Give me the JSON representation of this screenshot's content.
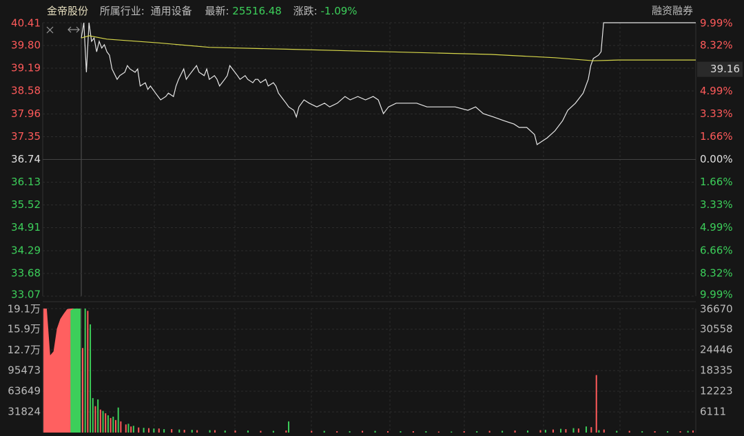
{
  "header": {
    "name": "金帝股份",
    "industry_label": "所属行业:",
    "industry": "通用设备",
    "latest_label": "最新:",
    "latest": "25516.48",
    "change_label": "涨跌:",
    "change": "-1.09%",
    "right_link": "融资融券"
  },
  "chart_data": [
    {
      "type": "line",
      "xlim": [
        0,
        240
      ],
      "ylim": [
        33.07,
        40.41
      ],
      "yticks": [
        40.41,
        {
          "value": 39.8,
          "label": "39.80"
        },
        39.19,
        38.58,
        37.96,
        37.35,
        36.74,
        36.13,
        35.52,
        34.91,
        34.29,
        33.68,
        33.07
      ],
      "y2lim": [
        -9.99,
        9.99
      ],
      "y2ticks": [
        {
          "value": 9.99,
          "label": "9.99%"
        },
        {
          "value": 8.32,
          "label": "8.32%"
        },
        {
          "value": 6.66,
          "label": "6.66%"
        },
        {
          "value": 4.99,
          "label": "4.99%"
        },
        {
          "value": 3.33,
          "label": "3.33%"
        },
        {
          "value": 1.66,
          "label": "1.66%"
        },
        {
          "value": 0,
          "label": "0.00%"
        },
        {
          "value": -1.66,
          "label": "1.66%"
        },
        {
          "value": -3.33,
          "label": "3.33%"
        },
        {
          "value": -4.99,
          "label": "4.99%"
        },
        {
          "value": -6.66,
          "label": "6.66%"
        },
        {
          "value": -8.32,
          "label": "8.32%"
        },
        {
          "value": -9.99,
          "label": "9.99%"
        }
      ],
      "up_color": "#ff5a5a",
      "down_color": "#3ccf5a",
      "flat_color": "#e0e0e0",
      "grid": true,
      "price_label": 39.16,
      "series": [
        {
          "color": "#e8e8e8",
          "x": [
            0,
            1,
            2,
            3,
            4,
            5,
            6,
            7,
            8,
            9,
            10,
            11,
            12,
            14,
            15,
            17,
            18,
            19,
            21,
            22,
            23,
            25,
            26,
            27,
            29,
            30,
            31,
            33,
            34,
            36,
            37,
            38,
            40,
            41,
            42,
            44,
            45,
            46,
            48,
            49,
            50,
            52,
            53,
            54,
            56,
            57,
            58,
            60,
            61,
            62,
            64,
            65,
            67,
            68,
            69,
            70,
            72,
            73,
            75,
            76,
            77,
            79,
            80,
            81,
            83,
            84,
            85,
            87,
            89,
            92,
            95,
            97,
            100,
            103,
            105,
            108,
            111,
            114,
            116,
            118,
            120,
            123,
            127,
            131,
            135,
            140,
            146,
            151,
            154,
            157,
            161,
            165,
            169,
            171,
            174,
            177,
            178,
            180,
            182,
            185,
            188,
            190,
            193,
            196,
            198,
            199,
            200,
            202,
            203,
            204,
            240
          ],
          "values": [
            40.0,
            40.41,
            39.08,
            40.41,
            39.91,
            40.0,
            39.63,
            39.91,
            39.73,
            39.82,
            39.63,
            39.54,
            39.17,
            38.89,
            38.99,
            39.08,
            39.26,
            39.17,
            39.08,
            39.17,
            38.71,
            38.8,
            38.62,
            38.71,
            38.52,
            38.43,
            38.34,
            38.43,
            38.52,
            38.43,
            38.71,
            38.89,
            39.17,
            38.89,
            38.99,
            39.17,
            39.26,
            39.08,
            38.99,
            39.17,
            38.89,
            38.99,
            38.89,
            38.71,
            38.89,
            38.99,
            39.26,
            39.08,
            38.99,
            38.89,
            38.99,
            38.89,
            38.8,
            38.89,
            38.89,
            38.8,
            38.89,
            38.71,
            38.8,
            38.71,
            38.52,
            38.34,
            38.25,
            38.15,
            38.06,
            37.88,
            38.15,
            38.34,
            38.25,
            38.15,
            38.25,
            38.15,
            38.25,
            38.43,
            38.34,
            38.43,
            38.34,
            38.43,
            38.34,
            37.97,
            38.15,
            38.25,
            38.25,
            38.25,
            38.15,
            38.15,
            38.15,
            38.06,
            38.15,
            37.97,
            37.88,
            37.78,
            37.69,
            37.6,
            37.6,
            37.41,
            37.14,
            37.23,
            37.32,
            37.51,
            37.78,
            38.06,
            38.25,
            38.52,
            38.89,
            39.26,
            39.45,
            39.54,
            39.63,
            40.41,
            40.41
          ]
        },
        {
          "color": "#d8d84a",
          "x": [
            0,
            3,
            10,
            30,
            50,
            80,
            120,
            160,
            185,
            200,
            210,
            240
          ],
          "values": [
            40.0,
            40.06,
            39.97,
            39.87,
            39.75,
            39.7,
            39.63,
            39.56,
            39.47,
            39.39,
            39.41,
            39.41
          ]
        }
      ]
    },
    {
      "type": "bar",
      "xlim": [
        0,
        240
      ],
      "ylim": [
        0,
        36670
      ],
      "yticks": [
        36670,
        30558,
        24446,
        18335,
        12223,
        6111
      ],
      "y2lim": [
        0,
        191000
      ],
      "y2ticks": [
        {
          "value": 191000,
          "label": "19.1万"
        },
        {
          "value": 159000,
          "label": "15.9万"
        },
        {
          "value": 127000,
          "label": "12.7万"
        },
        95473,
        63649,
        31824
      ],
      "grid": true,
      "series": [
        {
          "color": "#ff5a5a",
          "x": [
            0,
            2,
            5,
            7,
            9,
            11,
            13,
            15,
            17,
            19,
            22,
            26,
            30,
            35,
            40,
            45,
            52,
            60,
            70,
            80,
            90,
            100,
            110,
            120,
            130,
            140,
            150,
            160,
            170,
            180,
            185,
            190,
            195,
            200,
            202,
            205,
            215,
            225,
            235,
            240
          ],
          "values": [
            25000,
            36000,
            7800,
            6800,
            5700,
            4300,
            3700,
            3300,
            2400,
            1800,
            1500,
            1300,
            1200,
            1000,
            800,
            700,
            700,
            600,
            500,
            600,
            500,
            400,
            500,
            400,
            400,
            300,
            400,
            500,
            600,
            700,
            900,
            1000,
            1200,
            1600,
            17000,
            900,
            500,
            400,
            400,
            600
          ]
        },
        {
          "color": "#3ccf5a",
          "x": [
            1,
            3,
            4,
            6,
            8,
            10,
            12,
            14,
            18,
            20,
            24,
            28,
            32,
            38,
            43,
            50,
            56,
            65,
            75,
            81,
            95,
            105,
            115,
            125,
            135,
            145,
            155,
            165,
            175,
            182,
            188,
            193,
            198,
            203,
            210,
            220,
            230,
            238
          ],
          "values": [
            36670,
            32000,
            10200,
            9800,
            6400,
            5100,
            4700,
            7400,
            2600,
            2000,
            1400,
            1200,
            1000,
            900,
            800,
            700,
            600,
            600,
            500,
            3300,
            500,
            400,
            500,
            400,
            400,
            300,
            400,
            500,
            600,
            800,
            1100,
            1300,
            1800,
            700,
            500,
            400,
            400,
            500
          ]
        }
      ],
      "auction": [
        {
          "color": "#ff6060",
          "values": [
            191000,
            191000,
            119000,
            125000,
            160000,
            175000,
            183000,
            190000,
            191000,
            191000,
            191000,
            191000
          ]
        },
        {
          "color": "#3ccf5a",
          "values": [
            188000,
            191000,
            191000,
            191000
          ]
        }
      ]
    }
  ]
}
